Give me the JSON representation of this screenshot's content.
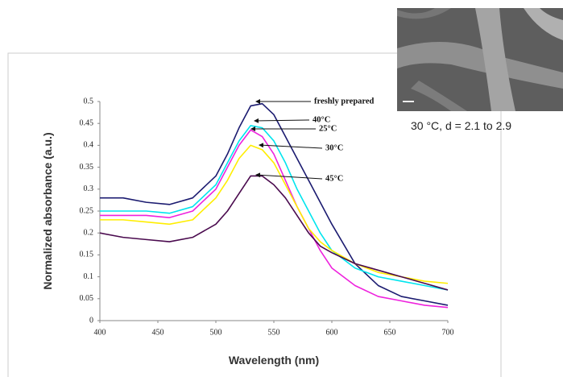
{
  "chart_data": {
    "type": "line",
    "xlabel": "Wavelength (nm)",
    "ylabel": "Normalized absorbance (a.u.)",
    "inset_caption": "30 °C, d = 2.1 to 2.9",
    "x": [
      400,
      420,
      440,
      460,
      480,
      500,
      510,
      520,
      530,
      540,
      550,
      560,
      570,
      580,
      590,
      600,
      620,
      640,
      660,
      680,
      700
    ],
    "series": [
      {
        "name": "freshly prepared",
        "color": "#1b1b70",
        "values": [
          0.28,
          0.28,
          0.27,
          0.265,
          0.28,
          0.33,
          0.38,
          0.44,
          0.49,
          0.495,
          0.47,
          0.42,
          0.37,
          0.32,
          0.27,
          0.22,
          0.13,
          0.08,
          0.055,
          0.045,
          0.035
        ]
      },
      {
        "name": "40°C",
        "color": "#00e5ee",
        "values": [
          0.25,
          0.25,
          0.25,
          0.245,
          0.26,
          0.31,
          0.36,
          0.41,
          0.445,
          0.44,
          0.41,
          0.36,
          0.3,
          0.25,
          0.2,
          0.16,
          0.12,
          0.1,
          0.09,
          0.08,
          0.07
        ]
      },
      {
        "name": "25°C",
        "color": "#ee22dd",
        "values": [
          0.24,
          0.24,
          0.24,
          0.235,
          0.25,
          0.3,
          0.35,
          0.4,
          0.435,
          0.42,
          0.38,
          0.32,
          0.26,
          0.21,
          0.16,
          0.12,
          0.08,
          0.055,
          0.045,
          0.035,
          0.03
        ]
      },
      {
        "name": "30°C",
        "color": "#ffee00",
        "values": [
          0.23,
          0.23,
          0.225,
          0.22,
          0.23,
          0.28,
          0.32,
          0.37,
          0.4,
          0.39,
          0.36,
          0.31,
          0.26,
          0.21,
          0.18,
          0.16,
          0.13,
          0.11,
          0.1,
          0.09,
          0.085
        ]
      },
      {
        "name": "45°C",
        "color": "#4a0a4e",
        "values": [
          0.2,
          0.19,
          0.185,
          0.18,
          0.19,
          0.22,
          0.25,
          0.29,
          0.33,
          0.33,
          0.31,
          0.28,
          0.24,
          0.2,
          0.17,
          0.155,
          0.13,
          0.115,
          0.1,
          0.085,
          0.07
        ]
      }
    ],
    "xlim": [
      400,
      700
    ],
    "xticks": [
      400,
      450,
      500,
      550,
      600,
      650,
      700
    ],
    "ylim": [
      0,
      0.5
    ],
    "yticks": [
      0,
      0.05,
      0.1,
      0.15,
      0.2,
      0.25,
      0.3,
      0.35,
      0.4,
      0.45,
      0.5
    ]
  }
}
